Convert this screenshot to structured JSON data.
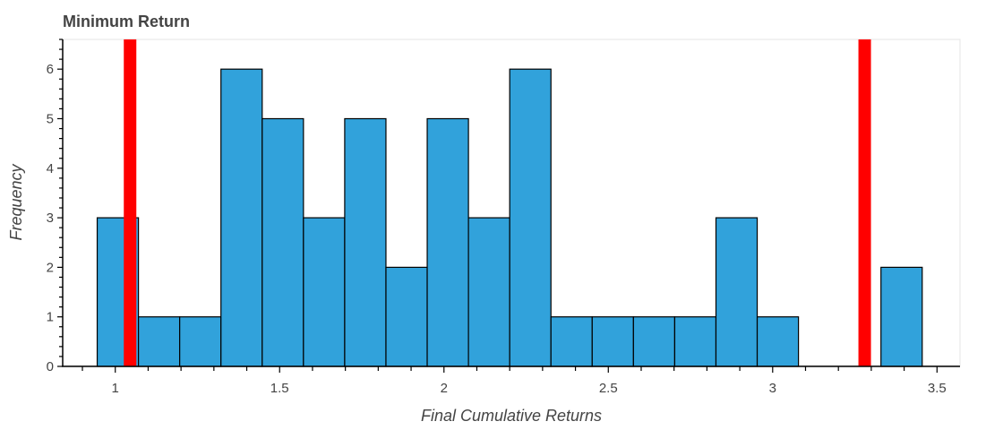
{
  "chart_data": {
    "type": "bar",
    "title": "Minimum Return",
    "xlabel": "Final Cumulative Returns",
    "ylabel": "Frequency",
    "xlim": [
      0.84,
      3.57
    ],
    "ylim": [
      0,
      6.6
    ],
    "bin_width": 0.1255,
    "bins": [
      {
        "x0": 0.945,
        "x1": 1.0705,
        "count": 3
      },
      {
        "x0": 1.0705,
        "x1": 1.196,
        "count": 1
      },
      {
        "x0": 1.196,
        "x1": 1.3215,
        "count": 1
      },
      {
        "x0": 1.3215,
        "x1": 1.447,
        "count": 6
      },
      {
        "x0": 1.447,
        "x1": 1.5725,
        "count": 5
      },
      {
        "x0": 1.5725,
        "x1": 1.698,
        "count": 3
      },
      {
        "x0": 1.698,
        "x1": 1.8235,
        "count": 5
      },
      {
        "x0": 1.8235,
        "x1": 1.949,
        "count": 2
      },
      {
        "x0": 1.949,
        "x1": 2.0745,
        "count": 5
      },
      {
        "x0": 2.0745,
        "x1": 2.2,
        "count": 3
      },
      {
        "x0": 2.2,
        "x1": 2.3255,
        "count": 6
      },
      {
        "x0": 2.3255,
        "x1": 2.451,
        "count": 1
      },
      {
        "x0": 2.451,
        "x1": 2.5765,
        "count": 1
      },
      {
        "x0": 2.5765,
        "x1": 2.702,
        "count": 1
      },
      {
        "x0": 2.702,
        "x1": 2.8275,
        "count": 1
      },
      {
        "x0": 2.8275,
        "x1": 2.953,
        "count": 3
      },
      {
        "x0": 2.953,
        "x1": 3.0785,
        "count": 1
      },
      {
        "x0": 3.0785,
        "x1": 3.204,
        "count": 0
      },
      {
        "x0": 3.204,
        "x1": 3.3295,
        "count": 0
      },
      {
        "x0": 3.3295,
        "x1": 3.455,
        "count": 2
      }
    ],
    "reference_lines": [
      1.045,
      3.28
    ],
    "x_ticks": [
      {
        "value": 1,
        "label": "1"
      },
      {
        "value": 1.5,
        "label": "1.5"
      },
      {
        "value": 2,
        "label": "2"
      },
      {
        "value": 2.5,
        "label": "2.5"
      },
      {
        "value": 3,
        "label": "3"
      },
      {
        "value": 3.5,
        "label": "3.5"
      }
    ],
    "y_ticks": [
      {
        "value": 0,
        "label": "0"
      },
      {
        "value": 1,
        "label": "1"
      },
      {
        "value": 2,
        "label": "2"
      },
      {
        "value": 3,
        "label": "3"
      },
      {
        "value": 4,
        "label": "4"
      },
      {
        "value": 5,
        "label": "5"
      },
      {
        "value": 6,
        "label": "6"
      }
    ],
    "grid": false,
    "colors": {
      "bar_fill": "#31a2db",
      "bar_stroke": "#000000",
      "reference_line": "#ff0000",
      "text": "#444444"
    }
  }
}
